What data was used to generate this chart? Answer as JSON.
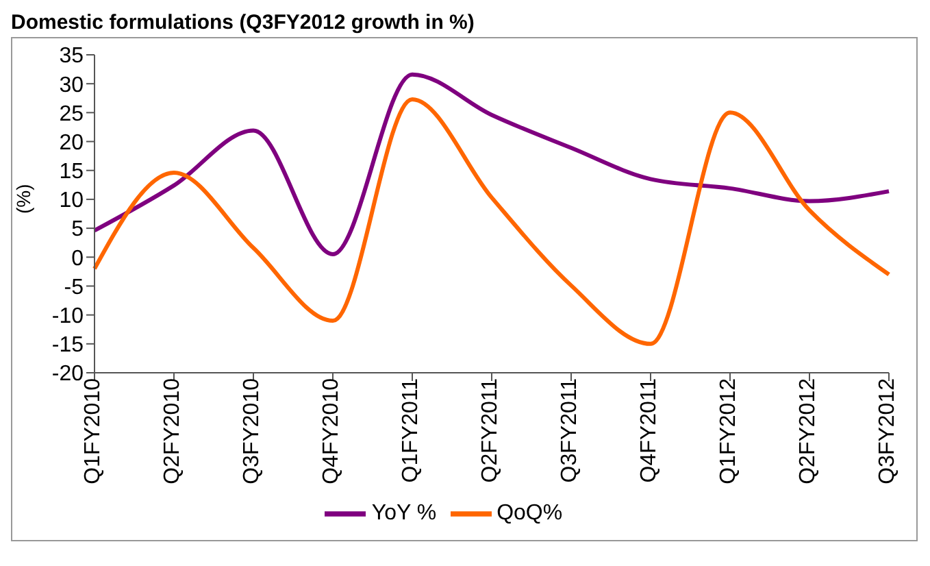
{
  "chart_data": {
    "type": "line",
    "title": "Domestic formulations (Q3FY2012 growth in %)",
    "ylabel": "(%)",
    "categories": [
      "Q1FY2010",
      "Q2FY2010",
      "Q3FY2010",
      "Q4FY2010",
      "Q1FY2011",
      "Q2FY2011",
      "Q3FY2011",
      "Q4FY2011",
      "Q1FY2012",
      "Q2FY2012",
      "Q3FY2012"
    ],
    "series": [
      {
        "name": "YoY %",
        "color": "#7f007f",
        "values": [
          4.6,
          12.4,
          21.9,
          0.5,
          31.6,
          24.6,
          18.9,
          13.5,
          11.9,
          9.7,
          11.4
        ]
      },
      {
        "name": "QoQ%",
        "color": "#ff6600",
        "values": [
          -2,
          14.6,
          1.6,
          -11,
          27.3,
          10.3,
          -4.9,
          -15,
          25,
          8.1,
          -3
        ]
      }
    ],
    "ylim": [
      -20,
      35
    ],
    "yticks": [
      -20,
      -15,
      -10,
      -5,
      0,
      5,
      10,
      15,
      20,
      25,
      30,
      35
    ],
    "legend": "bottom",
    "marker": "none",
    "line_style": "solid"
  }
}
